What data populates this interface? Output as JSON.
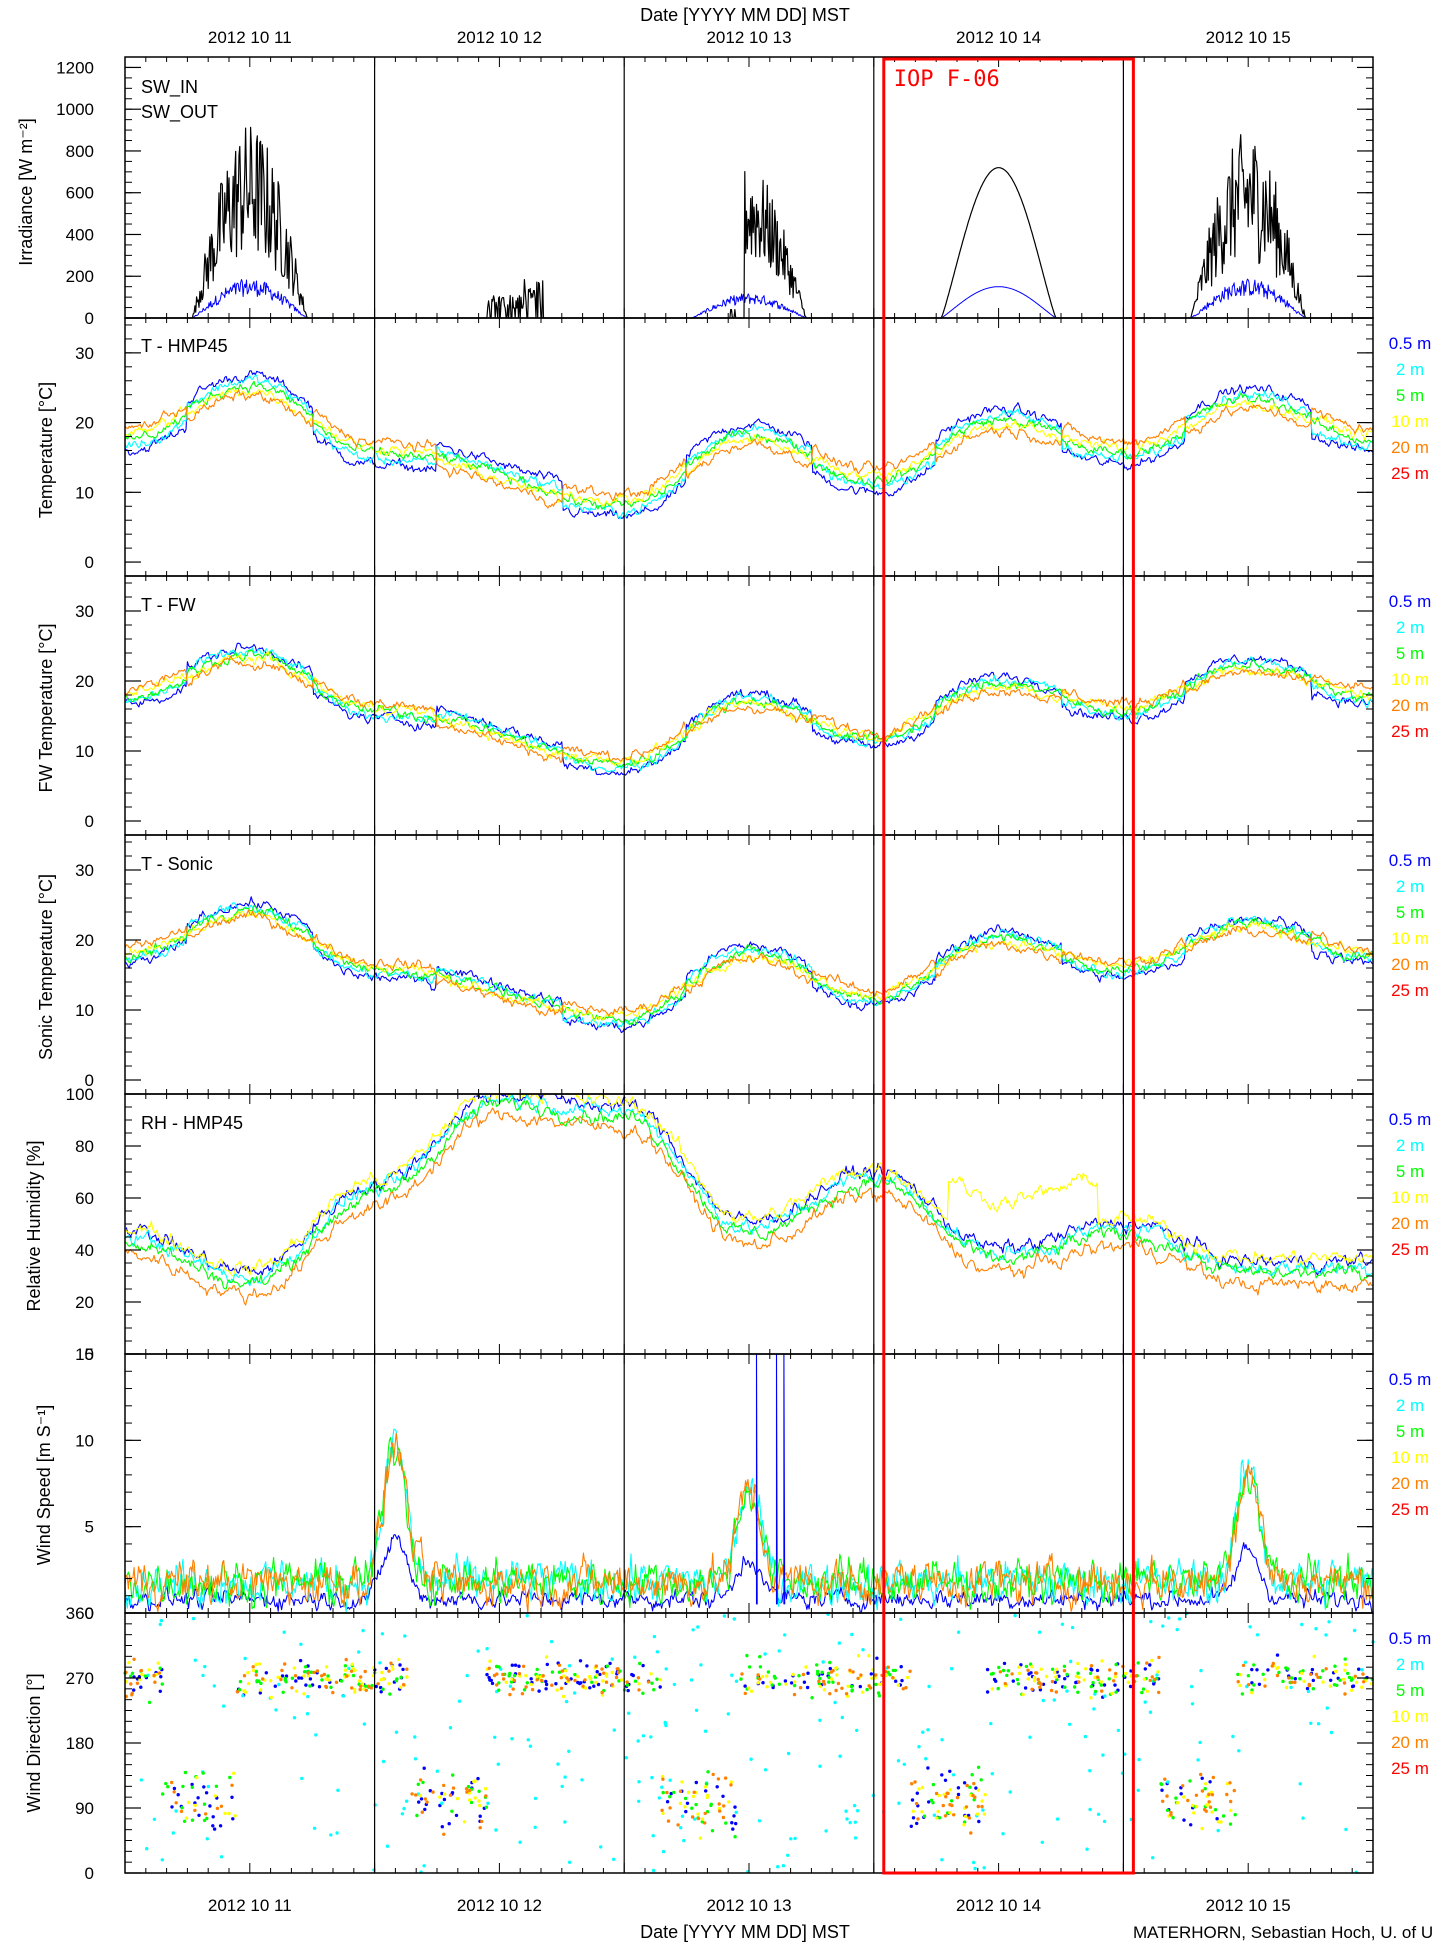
{
  "figure": {
    "top_axis_title": "Date [YYYY MM DD] MST",
    "bottom_axis_title": "Date [YYYY MM DD] MST",
    "credit": "MATERHORN, Sebastian Hoch, U. of U",
    "iop_label": "IOP F-06",
    "date_labels": [
      "2012 10 11",
      "2012 10 12",
      "2012 10 13",
      "2012 10 14",
      "2012 10 15"
    ],
    "heights": [
      {
        "label": "0.5 m",
        "color": "#0000ff"
      },
      {
        "label": "2 m",
        "color": "#00ffff"
      },
      {
        "label": "5 m",
        "color": "#00ff00"
      },
      {
        "label": "10 m",
        "color": "#ffff00"
      },
      {
        "label": "20 m",
        "color": "#ff8000"
      },
      {
        "label": "25 m",
        "color": "#ff0000"
      }
    ],
    "colors": {
      "iop_box": "#ff0000",
      "sw_in": "#000000",
      "sw_out": "#0000ff",
      "frame": "#000000"
    }
  },
  "chart_data": [
    {
      "type": "line",
      "ylabel": "Irradiance [W m⁻²]",
      "ylim": [
        0,
        1250
      ],
      "yticks": [
        "0",
        "200",
        "400",
        "600",
        "800",
        "1000",
        "1200"
      ],
      "legend": [
        "SW_IN",
        "SW_OUT"
      ],
      "x_days_start": "2012-10-10 12:00",
      "x_days_end": "2012-10-15 12:00",
      "day_markers": [
        "2012-10-11 12:00",
        "2012-10-12 12:00",
        "2012-10-13 12:00",
        "2012-10-14 12:00"
      ],
      "iop_period": [
        "2012-10-13 13:00",
        "2012-10-14 12:00"
      ],
      "series": [
        {
          "name": "SW_IN",
          "peaks": [
            {
              "date": "2012-10-11",
              "max": 940
            },
            {
              "date": "2012-10-12",
              "max": 190
            },
            {
              "date": "2012-10-13",
              "max": 730
            },
            {
              "date": "2012-10-14",
              "max": 720
            },
            {
              "date": "2012-10-15",
              "max": 900
            }
          ]
        },
        {
          "name": "SW_OUT",
          "peaks": [
            {
              "date": "2012-10-11",
              "max": 190
            },
            {
              "date": "2012-10-12",
              "max": 10
            },
            {
              "date": "2012-10-13",
              "max": 120
            },
            {
              "date": "2012-10-14",
              "max": 150
            },
            {
              "date": "2012-10-15",
              "max": 190
            }
          ]
        }
      ]
    },
    {
      "type": "line",
      "panel_title": "T - HMP45",
      "ylabel": "Temperature [°C]",
      "ylim": [
        -2,
        35
      ],
      "yticks": [
        "0",
        "10",
        "20",
        "30"
      ],
      "series_names": [
        "0.5 m",
        "2 m",
        "5 m",
        "10 m",
        "20 m",
        "25 m"
      ],
      "key_values": {
        "2012-10-10 12:00": 18,
        "2012-10-11 00:00": 25,
        "2012-10-11 12:00": 16,
        "2012-10-12 12:00": 8.5,
        "2012-10-13 00:00": 18,
        "2012-10-13 12:00": 12,
        "2012-10-14 00:00": 20,
        "2012-10-14 12:00": 16,
        "2012-10-15 00:00": 23,
        "2012-10-15 12:00": 18
      }
    },
    {
      "type": "line",
      "panel_title": "T - FW",
      "ylabel": "FW Temperature [°C]",
      "ylim": [
        -2,
        35
      ],
      "yticks": [
        "0",
        "10",
        "20",
        "30"
      ],
      "series_names": [
        "0.5 m",
        "2 m",
        "5 m",
        "10 m",
        "20 m",
        "25 m"
      ],
      "key_values": {
        "2012-10-10 12:00": 18,
        "2012-10-11 00:00": 23.5,
        "2012-10-11 12:00": 16,
        "2012-10-12 12:00": 8.5,
        "2012-10-13 00:00": 17,
        "2012-10-13 12:00": 12,
        "2012-10-14 00:00": 19.5,
        "2012-10-14 12:00": 16,
        "2012-10-15 00:00": 22,
        "2012-10-15 12:00": 18
      }
    },
    {
      "type": "line",
      "panel_title": "T - Sonic",
      "ylabel": "Sonic Temperature [°C]",
      "ylim": [
        -2,
        35
      ],
      "yticks": [
        "0",
        "10",
        "20",
        "30"
      ],
      "series_names": [
        "0.5 m",
        "2 m",
        "5 m",
        "10 m",
        "20 m",
        "25 m"
      ],
      "key_values": {
        "2012-10-10 12:00": 18,
        "2012-10-11 00:00": 24,
        "2012-10-11 12:00": 16,
        "2012-10-12 12:00": 9,
        "2012-10-13 00:00": 18,
        "2012-10-13 12:00": 12,
        "2012-10-14 00:00": 20,
        "2012-10-14 12:00": 16,
        "2012-10-15 00:00": 22,
        "2012-10-15 12:00": 18
      }
    },
    {
      "type": "line",
      "panel_title": "RH - HMP45",
      "ylabel": "Relative Humidity [%]",
      "ylim": [
        0,
        100
      ],
      "yticks": [
        "0",
        "20",
        "40",
        "60",
        "80",
        "100"
      ],
      "series_names": [
        "0.5 m",
        "2 m",
        "5 m",
        "10 m",
        "20 m",
        "25 m"
      ],
      "key_values": {
        "2012-10-10 12:00": 42,
        "2012-10-11 00:00": 26,
        "2012-10-11 12:00": 60,
        "2012-10-12 00:00": 95,
        "2012-10-12 12:00": 90,
        "2012-10-13 00:00": 45,
        "2012-10-13 12:00": 65,
        "2012-10-14 00:00": 35,
        "2012-10-14 12:00": 45,
        "2012-10-15 00:00": 30
      }
    },
    {
      "type": "line",
      "ylabel": "Wind Speed [m S⁻¹]",
      "ylim": [
        0,
        15
      ],
      "yticks": [
        "0",
        "5",
        "10",
        "15"
      ],
      "series_names": [
        "0.5 m",
        "2 m",
        "5 m",
        "10 m",
        "20 m",
        "25 m"
      ],
      "peaks": {
        "2012-10-11 14:00": 10,
        "2012-10-13 00:00": 7.5,
        "2012-10-15 00:00": 8.5
      }
    },
    {
      "type": "scatter",
      "ylabel": "Wind Direction [°]",
      "ylim": [
        0,
        360
      ],
      "yticks": [
        "0",
        "90",
        "180",
        "270",
        "360"
      ],
      "series_names": [
        "0.5 m",
        "2 m",
        "5 m",
        "10 m",
        "20 m",
        "25 m"
      ],
      "dominant_directions": {
        "night": 270,
        "day": 100
      }
    }
  ]
}
